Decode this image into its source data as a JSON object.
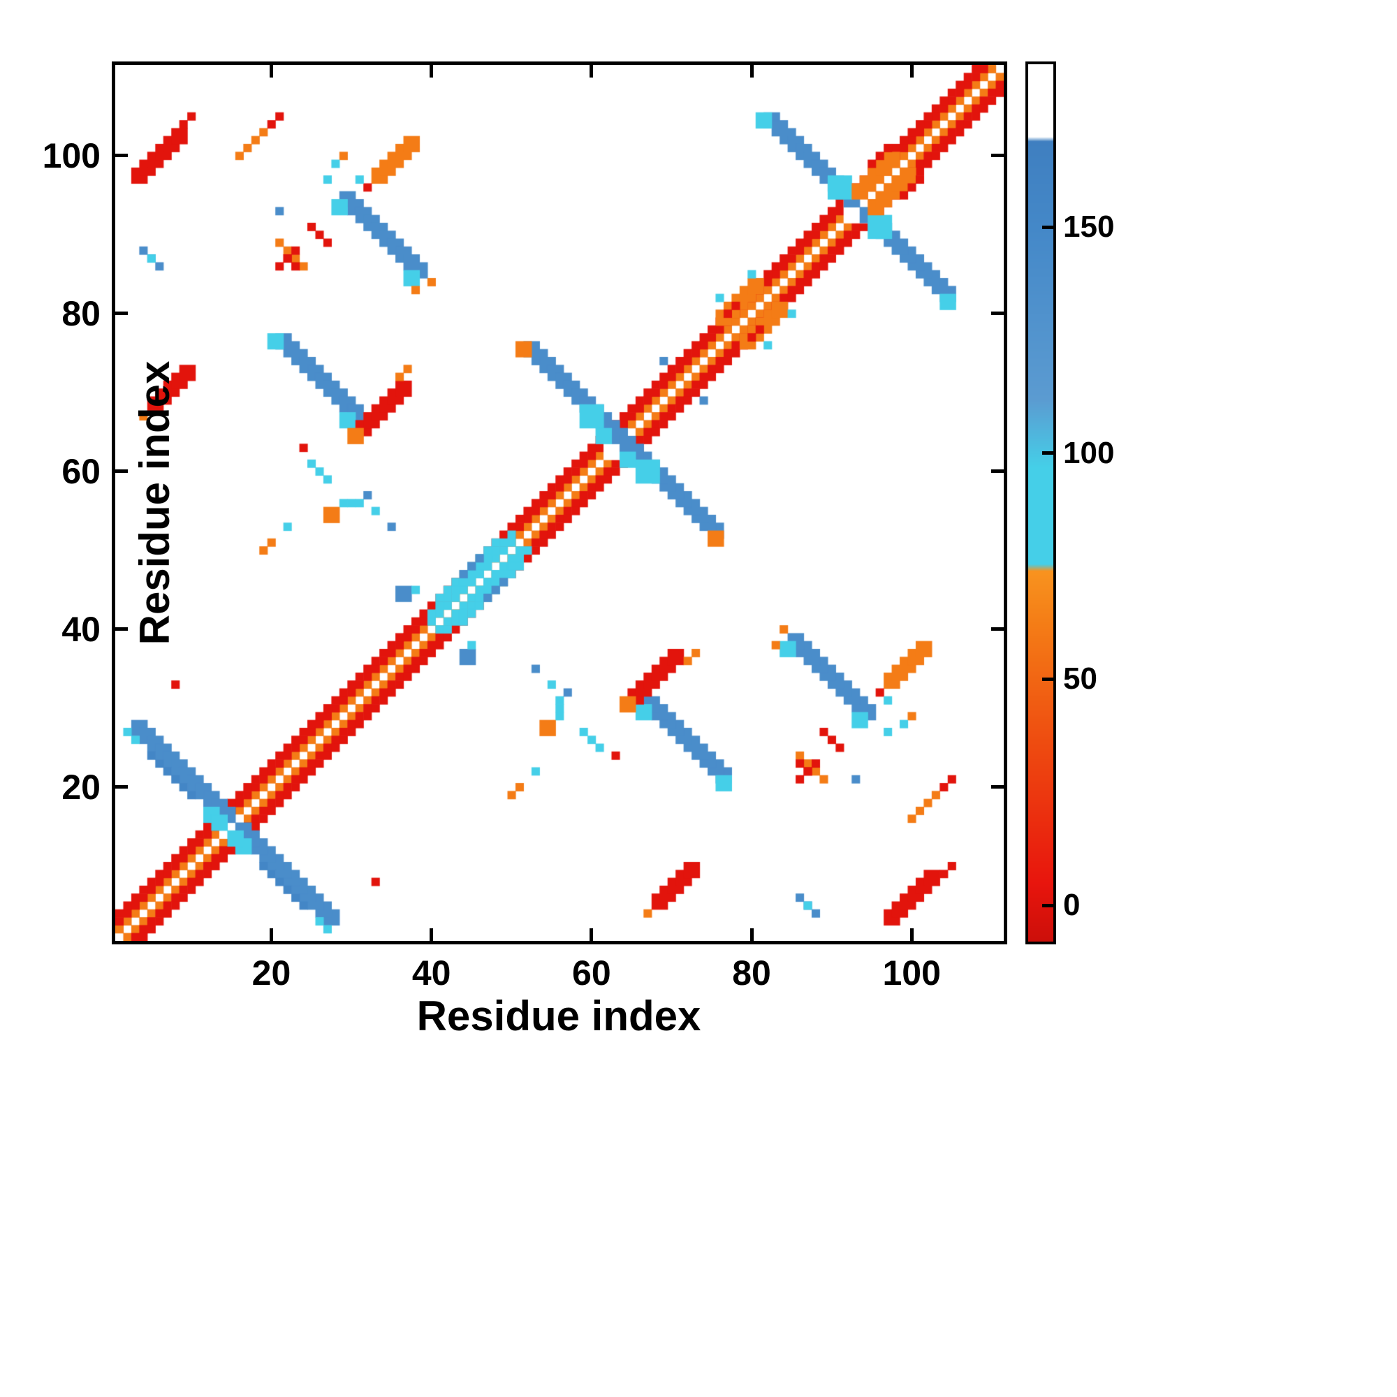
{
  "figure": {
    "x_ticks": [
      20,
      40,
      60,
      80,
      100
    ],
    "y_ticks": [
      20,
      40,
      60,
      80,
      100
    ],
    "colorbar_ticks": [
      0,
      50,
      100,
      150
    ]
  },
  "chart_data": {
    "type": "heatmap",
    "title": "",
    "xlabel": "Residue index",
    "ylabel": "Residue index",
    "n_residues": 111,
    "x_range": [
      1,
      111
    ],
    "y_range": [
      1,
      111
    ],
    "symmetric": true,
    "grid": false,
    "background_value_color": "#ffffff",
    "colorbar": {
      "position": "right",
      "ticks": [
        0,
        50,
        100,
        150
      ],
      "vmin": -8,
      "vmax": 186,
      "stops": [
        {
          "v": -8,
          "color": "#cc0f0a"
        },
        {
          "v": 5,
          "color": "#e8150d"
        },
        {
          "v": 35,
          "color": "#ee4a10"
        },
        {
          "v": 62,
          "color": "#f47c16"
        },
        {
          "v": 74,
          "color": "#f8931f"
        },
        {
          "v": 75.5,
          "color": "#45cfe8"
        },
        {
          "v": 97,
          "color": "#45cfe8"
        },
        {
          "v": 112,
          "color": "#5b9bd1"
        },
        {
          "v": 150,
          "color": "#4488c8"
        },
        {
          "v": 169,
          "color": "#3f7fc0"
        },
        {
          "v": 170,
          "color": "#ffffff"
        },
        {
          "v": 186,
          "color": "#ffffff"
        }
      ]
    },
    "value_classes": {
      "red": 2,
      "orange": 62,
      "cyan": 85,
      "blue": 140,
      "dark_blue": 155,
      "blank": 200
    },
    "runs": [
      {
        "x": 1,
        "y": 2,
        "dx": 1,
        "dy": 1,
        "n": 110,
        "t": 1,
        "v": 62
      },
      {
        "x": 1,
        "y": 3,
        "dx": 1,
        "dy": 1,
        "n": 109,
        "t": 1,
        "v": 2
      },
      {
        "x": 1,
        "y": 4,
        "dx": 1,
        "dy": 1,
        "n": 108,
        "t": 1,
        "v": 2
      },
      {
        "x": 40,
        "y": 41,
        "dx": 1,
        "dy": 1,
        "n": 11,
        "t": 1,
        "v": 85
      },
      {
        "x": 40,
        "y": 42,
        "dx": 1,
        "dy": 1,
        "n": 11,
        "t": 1,
        "v": 85
      },
      {
        "x": 41,
        "y": 44,
        "dx": 1,
        "dy": 1,
        "n": 8,
        "t": 1,
        "v": 85
      },
      {
        "x": 44,
        "y": 46,
        "dx": 1,
        "dy": 1,
        "n": 3,
        "t": 2,
        "v": 85
      },
      {
        "x": 44,
        "y": 47,
        "dx": 1,
        "dy": 1,
        "n": 3,
        "t": 1,
        "v": 140
      },
      {
        "x": 14,
        "y": 14,
        "dx": 1,
        "dy": 1,
        "n": 1,
        "t": 3,
        "v": 200
      },
      {
        "x": 62,
        "y": 62,
        "dx": 1,
        "dy": 1,
        "n": 1,
        "t": 3,
        "v": 200
      },
      {
        "x": 92,
        "y": 92,
        "dx": 1,
        "dy": 1,
        "n": 1,
        "t": 3,
        "v": 200
      },
      {
        "x": 3,
        "y": 27,
        "dx": 1,
        "dy": -1,
        "n": 12,
        "t": 2,
        "v": 140
      },
      {
        "x": 5,
        "y": 24,
        "dx": 1,
        "dy": -1,
        "n": 6,
        "t": 1,
        "v": 155
      },
      {
        "x": 2,
        "y": 27,
        "dx": 1,
        "dy": -1,
        "n": 2,
        "t": 1,
        "v": 85
      },
      {
        "x": 12,
        "y": 16,
        "dx": 1,
        "dy": -1,
        "n": 2,
        "t": 2,
        "v": 85
      },
      {
        "x": 21,
        "y": 76,
        "dx": 1,
        "dy": -1,
        "n": 10,
        "t": 2,
        "v": 140
      },
      {
        "x": 20,
        "y": 76,
        "dx": 1,
        "dy": 1,
        "n": 1,
        "t": 2,
        "v": 85
      },
      {
        "x": 29,
        "y": 66,
        "dx": 1,
        "dy": 1,
        "n": 1,
        "t": 2,
        "v": 85
      },
      {
        "x": 29,
        "y": 94,
        "dx": 1,
        "dy": -1,
        "n": 10,
        "t": 2,
        "v": 140
      },
      {
        "x": 28,
        "y": 93,
        "dx": 1,
        "dy": 1,
        "n": 1,
        "t": 2,
        "v": 85
      },
      {
        "x": 37,
        "y": 84,
        "dx": 1,
        "dy": 1,
        "n": 1,
        "t": 2,
        "v": 85
      },
      {
        "x": 38,
        "y": 83,
        "dx": 1,
        "dy": 1,
        "n": 1,
        "t": 1,
        "v": 62
      },
      {
        "x": 25,
        "y": 91,
        "dx": 1,
        "dy": -1,
        "n": 3,
        "t": 1,
        "v": 2
      },
      {
        "x": 52,
        "y": 75,
        "dx": 1,
        "dy": -1,
        "n": 12,
        "t": 2,
        "v": 140
      },
      {
        "x": 51,
        "y": 75,
        "dx": 1,
        "dy": 1,
        "n": 1,
        "t": 2,
        "v": 62
      },
      {
        "x": 59,
        "y": 66,
        "dx": 1,
        "dy": 1,
        "n": 1,
        "t": 3,
        "v": 85
      },
      {
        "x": 61,
        "y": 64,
        "dx": 1,
        "dy": 1,
        "n": 1,
        "t": 2,
        "v": 85
      },
      {
        "x": 82,
        "y": 104,
        "dx": 1,
        "dy": -1,
        "n": 11,
        "t": 2,
        "v": 140
      },
      {
        "x": 81,
        "y": 104,
        "dx": 1,
        "dy": 1,
        "n": 1,
        "t": 2,
        "v": 85
      },
      {
        "x": 90,
        "y": 95,
        "dx": 1,
        "dy": 1,
        "n": 1,
        "t": 3,
        "v": 85
      },
      {
        "x": 3,
        "y": 97,
        "dx": 1,
        "dy": 1,
        "n": 6,
        "t": 2,
        "v": 2
      },
      {
        "x": 9,
        "y": 104,
        "dx": 1,
        "dy": 1,
        "n": 2,
        "t": 1,
        "v": 2
      },
      {
        "x": 33,
        "y": 97,
        "dx": 1,
        "dy": 1,
        "n": 5,
        "t": 2,
        "v": 62
      },
      {
        "x": 32,
        "y": 96,
        "dx": 1,
        "dy": 1,
        "n": 1,
        "t": 1,
        "v": 2
      },
      {
        "x": 5,
        "y": 68,
        "dx": 1,
        "dy": 1,
        "n": 5,
        "t": 2,
        "v": 2
      },
      {
        "x": 4,
        "y": 67,
        "dx": 1,
        "dy": 1,
        "n": 1,
        "t": 1,
        "v": 62
      },
      {
        "x": 31,
        "y": 65,
        "dx": 1,
        "dy": 1,
        "n": 6,
        "t": 2,
        "v": 2
      },
      {
        "x": 30,
        "y": 64,
        "dx": 1,
        "dy": 1,
        "n": 1,
        "t": 2,
        "v": 62
      },
      {
        "x": 36,
        "y": 72,
        "dx": 1,
        "dy": 1,
        "n": 2,
        "t": 1,
        "v": 62
      },
      {
        "x": 76,
        "y": 79,
        "dx": 1,
        "dy": 1,
        "n": 3,
        "t": 2,
        "v": 62
      },
      {
        "x": 79,
        "y": 82,
        "dx": 1,
        "dy": 1,
        "n": 2,
        "t": 2,
        "v": 62
      },
      {
        "x": 76,
        "y": 82,
        "dx": 1,
        "dy": 1,
        "n": 1,
        "t": 1,
        "v": 85
      },
      {
        "x": 80,
        "y": 85,
        "dx": 1,
        "dy": 1,
        "n": 1,
        "t": 1,
        "v": 85
      },
      {
        "x": 77,
        "y": 80,
        "dx": 1,
        "dy": 1,
        "n": 2,
        "t": 1,
        "v": 2
      },
      {
        "x": 93,
        "y": 95,
        "dx": 1,
        "dy": 1,
        "n": 5,
        "t": 2,
        "v": 62
      },
      {
        "x": 95,
        "y": 99,
        "dx": 1,
        "dy": 1,
        "n": 3,
        "t": 1,
        "v": 2
      },
      {
        "x": 4,
        "y": 88,
        "dx": 1,
        "dy": -1,
        "n": 3,
        "t": 1,
        "v": 140
      },
      {
        "x": 5,
        "y": 87,
        "dx": 1,
        "dy": 1,
        "n": 1,
        "t": 1,
        "v": 85
      },
      {
        "x": 21,
        "y": 89,
        "dx": 1,
        "dy": -1,
        "n": 4,
        "t": 1,
        "v": 62
      },
      {
        "x": 22,
        "y": 87,
        "dx": 1,
        "dy": -1,
        "n": 2,
        "t": 1,
        "v": 2
      },
      {
        "x": 29,
        "y": 100,
        "dx": 1,
        "dy": 1,
        "n": 1,
        "t": 1,
        "v": 62
      },
      {
        "x": 31,
        "y": 97,
        "dx": 1,
        "dy": 1,
        "n": 1,
        "t": 1,
        "v": 85
      },
      {
        "x": 8,
        "y": 33,
        "dx": 1,
        "dy": 1,
        "n": 1,
        "t": 1,
        "v": 2
      },
      {
        "x": 25,
        "y": 61,
        "dx": 1,
        "dy": -1,
        "n": 3,
        "t": 1,
        "v": 85
      },
      {
        "x": 24,
        "y": 63,
        "dx": 1,
        "dy": 1,
        "n": 1,
        "t": 1,
        "v": 2
      },
      {
        "x": 27,
        "y": 54,
        "dx": 1,
        "dy": 1,
        "n": 1,
        "t": 2,
        "v": 62
      },
      {
        "x": 33,
        "y": 55,
        "dx": 1,
        "dy": 1,
        "n": 1,
        "t": 1,
        "v": 85
      },
      {
        "x": 35,
        "y": 53,
        "dx": 1,
        "dy": 1,
        "n": 1,
        "t": 1,
        "v": 140
      },
      {
        "x": 36,
        "y": 44,
        "dx": 1,
        "dy": 1,
        "n": 1,
        "t": 2,
        "v": 140
      },
      {
        "x": 38,
        "y": 45,
        "dx": 1,
        "dy": 1,
        "n": 1,
        "t": 1,
        "v": 85
      },
      {
        "x": 56,
        "y": 29,
        "dx": 0,
        "dy": 1,
        "n": 3,
        "t": 1,
        "v": 85
      },
      {
        "x": 57,
        "y": 32,
        "dx": 1,
        "dy": 1,
        "n": 1,
        "t": 1,
        "v": 140
      },
      {
        "x": 53,
        "y": 22,
        "dx": 1,
        "dy": 1,
        "n": 1,
        "t": 1,
        "v": 85
      },
      {
        "x": 50,
        "y": 19,
        "dx": 1,
        "dy": 1,
        "n": 2,
        "t": 1,
        "v": 62
      },
      {
        "x": 84,
        "y": 40,
        "dx": 1,
        "dy": 1,
        "n": 1,
        "t": 1,
        "v": 62
      },
      {
        "x": 86,
        "y": 21,
        "dx": 1,
        "dy": 1,
        "n": 3,
        "t": 1,
        "v": 2
      },
      {
        "x": 93,
        "y": 21,
        "dx": 1,
        "dy": 1,
        "n": 1,
        "t": 1,
        "v": 140
      },
      {
        "x": 97,
        "y": 27,
        "dx": 2,
        "dy": 1,
        "n": 2,
        "t": 1,
        "v": 85
      },
      {
        "x": 100,
        "y": 16,
        "dx": 1,
        "dy": 1,
        "n": 4,
        "t": 1,
        "v": 62
      },
      {
        "x": 104,
        "y": 20,
        "dx": 1,
        "dy": 1,
        "n": 2,
        "t": 1,
        "v": 2
      },
      {
        "x": 69,
        "y": 74,
        "dx": 1,
        "dy": 1,
        "n": 1,
        "t": 1,
        "v": 140
      }
    ]
  }
}
